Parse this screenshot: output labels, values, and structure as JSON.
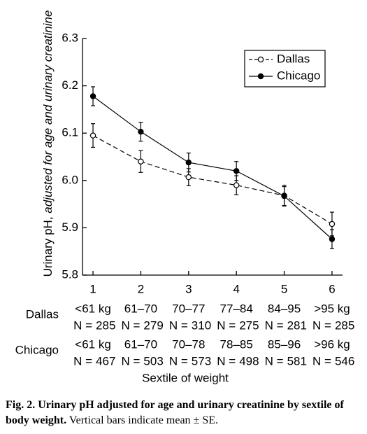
{
  "chart_data": {
    "type": "line",
    "y_label": "Urinary pH,",
    "y_label_italic": "adjusted for age and urinary creatinine",
    "x_label": "Sextile of weight",
    "x": [
      1,
      2,
      3,
      4,
      5,
      6
    ],
    "xlim": [
      0.78,
      6.22
    ],
    "xticks": [
      1,
      2,
      3,
      4,
      5,
      6
    ],
    "ylim": [
      5.8,
      6.3
    ],
    "yticks": [
      5.8,
      5.9,
      {
        "value": 6,
        "label": "6.0"
      },
      6.1,
      6.2,
      6.3
    ],
    "legend": "top-right",
    "series": [
      {
        "name": "Dallas",
        "color": "#000000",
        "dashed": true,
        "filled": false,
        "values": [
          6.095,
          6.04,
          6.007,
          5.99,
          5.968,
          5.908
        ],
        "errors": [
          0.025,
          0.023,
          0.018,
          0.02,
          0.022,
          0.025
        ]
      },
      {
        "name": "Chicago",
        "color": "#000000",
        "dashed": false,
        "filled": true,
        "values": [
          6.178,
          6.103,
          6.038,
          6.02,
          5.967,
          5.876
        ],
        "errors": [
          0.02,
          0.02,
          0.02,
          0.02,
          0.02,
          0.02
        ]
      }
    ],
    "table": [
      {
        "name": "Dallas",
        "weights": [
          "<61 kg",
          "61–70",
          "70–77",
          "77–84",
          "84–95",
          ">95 kg"
        ],
        "n_prefix": "N =",
        "n": [
          285,
          279,
          310,
          275,
          281,
          285
        ]
      },
      {
        "name": "Chicago",
        "weights": [
          "<61 kg",
          "61–70",
          "70–78",
          "78–85",
          "85–96",
          ">96 kg"
        ],
        "n_prefix": "N =",
        "n": [
          467,
          503,
          573,
          498,
          581,
          546
        ]
      }
    ],
    "caption_bold": "Fig. 2. Urinary pH adjusted for age and urinary creatinine by sextile of body weight.",
    "caption": "Vertical bars indicate mean ± SE."
  }
}
